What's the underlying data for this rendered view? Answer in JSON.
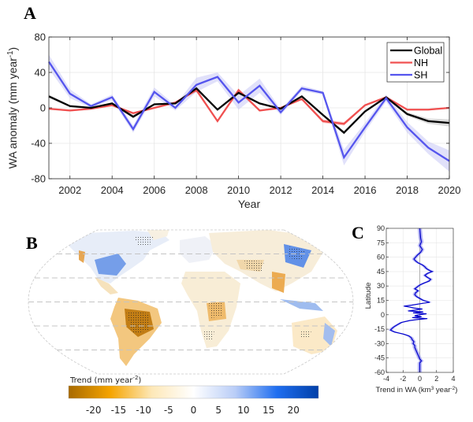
{
  "panels": {
    "a_label": "A",
    "b_label": "B",
    "c_label": "C"
  },
  "chart_data": [
    {
      "id": "A",
      "type": "line",
      "title": "",
      "xlabel": "Year",
      "ylabel": "WA anomaly (mm year",
      "ylabel_sup": "-1",
      "ylabel_end": ")",
      "xlim": [
        2001,
        2020
      ],
      "ylim": [
        -80,
        80
      ],
      "xticks": [
        2002,
        2004,
        2006,
        2008,
        2010,
        2012,
        2014,
        2016,
        2018,
        2020
      ],
      "yticks": [
        -80,
        -40,
        0,
        40,
        80
      ],
      "grid": true,
      "legend_position": "top-right",
      "x": [
        2001,
        2002,
        2003,
        2004,
        2005,
        2006,
        2007,
        2008,
        2009,
        2010,
        2011,
        2012,
        2013,
        2014,
        2015,
        2016,
        2017,
        2018,
        2019,
        2020
      ],
      "series": [
        {
          "name": "Global",
          "color": "#000000",
          "band_color": "#bbbbbb",
          "values": [
            13,
            2,
            0,
            5,
            -10,
            4,
            5,
            22,
            -2,
            17,
            5,
            -1,
            13,
            -8,
            -28,
            -4,
            12,
            -7,
            -15,
            -17
          ],
          "uncertainty": [
            2,
            1,
            1,
            1,
            2,
            1,
            1,
            2,
            1,
            2,
            1,
            1,
            1,
            1,
            2,
            1,
            1,
            2,
            3,
            4
          ]
        },
        {
          "name": "NH",
          "color": "#f05050",
          "band_color": "#f7a0a0",
          "values": [
            -1,
            -3,
            -1,
            3,
            -6,
            0,
            6,
            20,
            -15,
            20,
            -3,
            0,
            10,
            -15,
            -18,
            3,
            12,
            -2,
            -2,
            0
          ],
          "uncertainty": [
            1,
            1,
            1,
            1,
            1,
            1,
            1,
            2,
            1,
            2,
            1,
            1,
            1,
            2,
            2,
            1,
            1,
            1,
            1,
            1
          ]
        },
        {
          "name": "SH",
          "color": "#5555ee",
          "band_color": "#c8c8f5",
          "values": [
            52,
            16,
            2,
            12,
            -24,
            18,
            0,
            26,
            35,
            6,
            25,
            -5,
            22,
            17,
            -56,
            -22,
            11,
            -22,
            -45,
            -60
          ],
          "uncertainty": [
            8,
            5,
            2,
            3,
            4,
            5,
            3,
            8,
            5,
            8,
            8,
            3,
            3,
            2,
            9,
            5,
            4,
            6,
            7,
            12
          ]
        }
      ]
    },
    {
      "id": "C",
      "type": "line",
      "title": "",
      "xlabel": "Trend in WA (km",
      "xlabel_sup1": "3",
      "xlabel_mid": " year",
      "xlabel_sup2": "-2",
      "xlabel_end": ")",
      "ylabel": "Latitude",
      "xlim": [
        -4,
        4
      ],
      "ylim": [
        -60,
        90
      ],
      "xticks": [
        -4,
        -2,
        0,
        2,
        4
      ],
      "yticks": [
        -60,
        -45,
        -30,
        -15,
        0,
        15,
        30,
        45,
        60,
        75,
        90
      ],
      "grid": true,
      "series": [
        {
          "name": "Trend in WA",
          "color": "#0000cc",
          "band_color": "#8888ee",
          "latitude": [
            90,
            85,
            80,
            76,
            72,
            68,
            65,
            62,
            60,
            58,
            56,
            54,
            52,
            50,
            48,
            46,
            45,
            43,
            41,
            39,
            37,
            35,
            33,
            31,
            29,
            27,
            25,
            23,
            21,
            19,
            17,
            15,
            13,
            12,
            10,
            9,
            8,
            7,
            6,
            5,
            4,
            3,
            2,
            1,
            0,
            -1,
            -2,
            -3,
            -4,
            -5,
            -6,
            -8,
            -10,
            -12,
            -14,
            -16,
            -18,
            -20,
            -22,
            -24,
            -26,
            -28,
            -30,
            -32,
            -34,
            -36,
            -38,
            -40,
            -42,
            -44,
            -46,
            -48,
            -50,
            -52,
            -55,
            -58,
            -60
          ],
          "values": [
            0,
            0.05,
            0.1,
            0.2,
            0,
            0.3,
            0.1,
            -0.3,
            -0.5,
            -0.7,
            -0.5,
            -0.2,
            0.3,
            0.6,
            0.8,
            1.2,
            1.5,
            0.9,
            0.6,
            0.9,
            1.3,
            1.1,
            0.5,
            0,
            -0.3,
            -0.6,
            -0.2,
            -0.5,
            -0.6,
            -0.4,
            0,
            0.4,
            1.2,
            0.4,
            -1,
            -1.9,
            -1.2,
            -0.7,
            0.3,
            -0.5,
            -1.4,
            0.4,
            -0.8,
            0.8,
            -0.1,
            -0.6,
            0.2,
            -0.9,
            0.9,
            -0.3,
            -1.2,
            -2.2,
            -2.6,
            -3,
            -3.3,
            -3.5,
            -3,
            -2,
            -1.3,
            -1.0,
            -0.9,
            -0.7,
            -0.8,
            -0.6,
            -0.6,
            -0.5,
            -0.4,
            -0.3,
            -0.2,
            -0.1,
            0,
            0.2,
            0,
            0,
            0,
            0,
            0
          ]
        }
      ]
    }
  ],
  "map": {
    "colorbar_title": "Trend (mm year",
    "colorbar_title_sup": "-2",
    "colorbar_title_end": ")",
    "colorbar_ticks": [
      -20,
      -15,
      -10,
      -5,
      0,
      5,
      10,
      15,
      20
    ],
    "colorbar_range": [
      -25,
      25
    ],
    "colorbar_colors": [
      "#a86a00",
      "#f5a400",
      "#fde8b8",
      "#ffffff",
      "#b9cdf7",
      "#1f6ef0",
      "#003fa8"
    ],
    "graticule_latitudes": [
      60,
      30,
      0,
      -30,
      -60
    ]
  }
}
